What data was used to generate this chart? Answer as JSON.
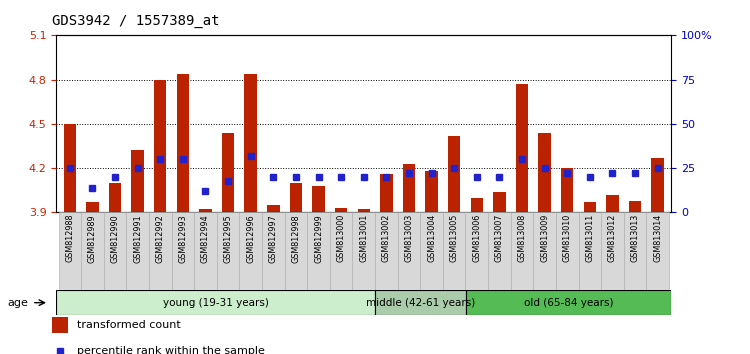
{
  "title": "GDS3942 / 1557389_at",
  "samples": [
    "GSM812988",
    "GSM812989",
    "GSM812990",
    "GSM812991",
    "GSM812992",
    "GSM812993",
    "GSM812994",
    "GSM812995",
    "GSM812996",
    "GSM812997",
    "GSM812998",
    "GSM812999",
    "GSM813000",
    "GSM813001",
    "GSM813002",
    "GSM813003",
    "GSM813004",
    "GSM813005",
    "GSM813006",
    "GSM813007",
    "GSM813008",
    "GSM813009",
    "GSM813010",
    "GSM813011",
    "GSM813012",
    "GSM813013",
    "GSM813014"
  ],
  "bar_values": [
    4.5,
    3.97,
    4.1,
    4.32,
    4.8,
    4.84,
    3.92,
    4.44,
    4.84,
    3.95,
    4.1,
    4.08,
    3.93,
    3.92,
    4.16,
    4.23,
    4.18,
    4.42,
    4.0,
    4.04,
    4.77,
    4.44,
    4.2,
    3.97,
    4.02,
    3.98,
    4.27
  ],
  "percentile_pct": [
    25,
    14,
    20,
    25,
    30,
    30,
    12,
    18,
    32,
    20,
    20,
    20,
    20,
    20,
    20,
    22,
    22,
    25,
    20,
    20,
    30,
    25,
    22,
    20,
    22,
    22,
    25
  ],
  "ylim": [
    3.9,
    5.1
  ],
  "yticks_left": [
    3.9,
    4.2,
    4.5,
    4.8,
    5.1
  ],
  "yticks_right": [
    0,
    25,
    50,
    75,
    100
  ],
  "bar_color": "#BB2200",
  "dot_color": "#2222CC",
  "bar_width": 0.55,
  "groups": [
    {
      "label": "young (19-31 years)",
      "start": 0,
      "end": 14,
      "color": "#CCEECC"
    },
    {
      "label": "middle (42-61 years)",
      "start": 14,
      "end": 18,
      "color": "#AACCAA"
    },
    {
      "label": "old (65-84 years)",
      "start": 18,
      "end": 27,
      "color": "#55BB55"
    }
  ],
  "legend_items": [
    {
      "label": "transformed count",
      "color": "#BB2200"
    },
    {
      "label": "percentile rank within the sample",
      "color": "#2222CC"
    }
  ],
  "age_label": "age",
  "title_fontsize": 10,
  "ylabel_left_color": "#CC2200",
  "ylabel_right_color": "#0000CC"
}
